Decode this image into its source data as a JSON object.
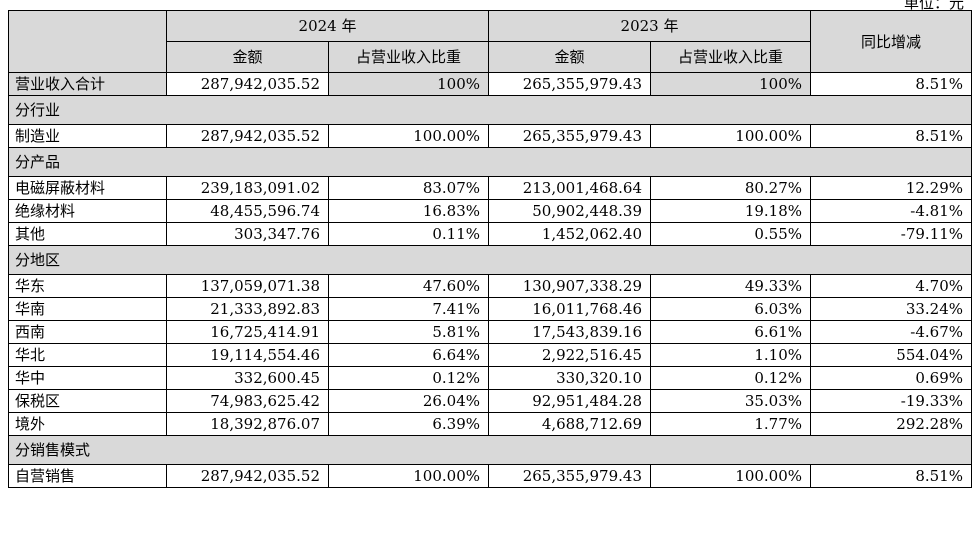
{
  "unit": "单位：元",
  "header": {
    "year1": "2024 年",
    "year2": "2023 年",
    "amount": "金额",
    "ratio": "占营业收入比重",
    "yoy": "同比增减"
  },
  "total": {
    "label": "营业收入合计",
    "a1": "287,942,035.52",
    "r1": "100%",
    "a2": "265,355,979.43",
    "r2": "100%",
    "yoy": "8.51%"
  },
  "sections": [
    {
      "title": "分行业",
      "rows": [
        {
          "label": "制造业",
          "a1": "287,942,035.52",
          "r1": "100.00%",
          "a2": "265,355,979.43",
          "r2": "100.00%",
          "yoy": "8.51%"
        }
      ]
    },
    {
      "title": "分产品",
      "rows": [
        {
          "label": "电磁屏蔽材料",
          "a1": "239,183,091.02",
          "r1": "83.07%",
          "a2": "213,001,468.64",
          "r2": "80.27%",
          "yoy": "12.29%"
        },
        {
          "label": "绝缘材料",
          "a1": "48,455,596.74",
          "r1": "16.83%",
          "a2": "50,902,448.39",
          "r2": "19.18%",
          "yoy": "-4.81%"
        },
        {
          "label": "其他",
          "a1": "303,347.76",
          "r1": "0.11%",
          "a2": "1,452,062.40",
          "r2": "0.55%",
          "yoy": "-79.11%"
        }
      ]
    },
    {
      "title": "分地区",
      "rows": [
        {
          "label": "华东",
          "a1": "137,059,071.38",
          "r1": "47.60%",
          "a2": "130,907,338.29",
          "r2": "49.33%",
          "yoy": "4.70%"
        },
        {
          "label": "华南",
          "a1": "21,333,892.83",
          "r1": "7.41%",
          "a2": "16,011,768.46",
          "r2": "6.03%",
          "yoy": "33.24%"
        },
        {
          "label": "西南",
          "a1": "16,725,414.91",
          "r1": "5.81%",
          "a2": "17,543,839.16",
          "r2": "6.61%",
          "yoy": "-4.67%"
        },
        {
          "label": "华北",
          "a1": "19,114,554.46",
          "r1": "6.64%",
          "a2": "2,922,516.45",
          "r2": "1.10%",
          "yoy": "554.04%"
        },
        {
          "label": "华中",
          "a1": "332,600.45",
          "r1": "0.12%",
          "a2": "330,320.10",
          "r2": "0.12%",
          "yoy": "0.69%"
        },
        {
          "label": "保税区",
          "a1": "74,983,625.42",
          "r1": "26.04%",
          "a2": "92,951,484.28",
          "r2": "35.03%",
          "yoy": "-19.33%"
        },
        {
          "label": "境外",
          "a1": "18,392,876.07",
          "r1": "6.39%",
          "a2": "4,688,712.69",
          "r2": "1.77%",
          "yoy": "292.28%"
        }
      ]
    },
    {
      "title": "分销售模式",
      "rows": [
        {
          "label": "自营销售",
          "a1": "287,942,035.52",
          "r1": "100.00%",
          "a2": "265,355,979.43",
          "r2": "100.00%",
          "yoy": "8.51%"
        }
      ]
    }
  ]
}
